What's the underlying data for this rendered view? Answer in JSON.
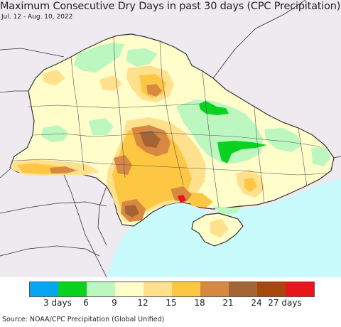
{
  "title": "Maximum Consecutive Dry Days in past 30 days (CPC Precipitation)",
  "date_range": "Jul. 12 - Aug. 10, 2022",
  "source": "Source: NOAA/CPC Precipitation (Global Unified)",
  "colors": {
    "land_outside": "#efe9f0",
    "sea": "#c9fbfc",
    "border": "#333333"
  },
  "legend": {
    "colors": [
      "#0aa5f0",
      "#0ad21e",
      "#bdf7c0",
      "#fffdc9",
      "#fee08d",
      "#fdc744",
      "#d88840",
      "#a56434",
      "#a8470a",
      "#e8161a"
    ],
    "labels": [
      "3 days",
      "6",
      "9",
      "12",
      "15",
      "18",
      "21",
      "24",
      "27 days"
    ]
  }
}
